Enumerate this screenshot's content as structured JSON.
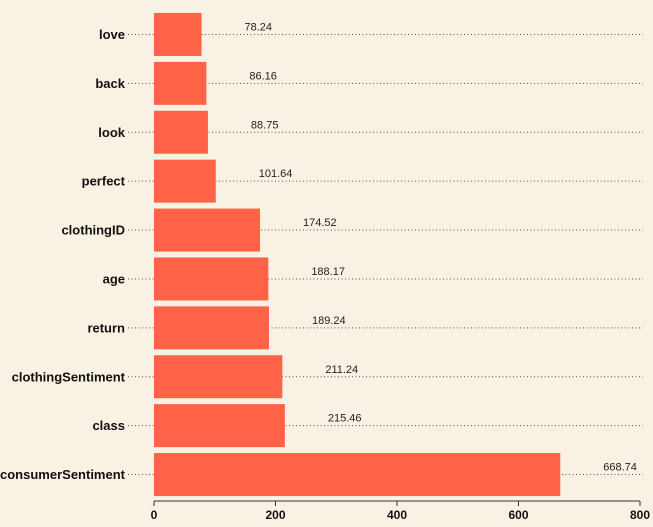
{
  "chart_data": {
    "type": "bar",
    "orientation": "horizontal",
    "categories": [
      "love",
      "back",
      "look",
      "perfect",
      "clothingID",
      "age",
      "return",
      "clothingSentiment",
      "class",
      "consumerSentiment"
    ],
    "values": [
      78.24,
      86.16,
      88.75,
      101.64,
      174.52,
      188.17,
      189.24,
      211.24,
      215.46,
      668.74
    ],
    "value_labels": [
      "78.24",
      "86.16",
      "88.75",
      "101.64",
      "174.52",
      "188.17",
      "189.24",
      "211.24",
      "215.46",
      "668.74"
    ],
    "xlim": [
      0,
      800
    ],
    "xticks": [
      0,
      200,
      400,
      600,
      800
    ],
    "title": "",
    "xlabel": "",
    "ylabel": "",
    "grid": "dotted horizontal guide lines per category",
    "legend": "none",
    "colors": {
      "bar": "#ff6347",
      "background": "#f9f1e3",
      "grid": "#555555",
      "axis": "#333333"
    }
  }
}
